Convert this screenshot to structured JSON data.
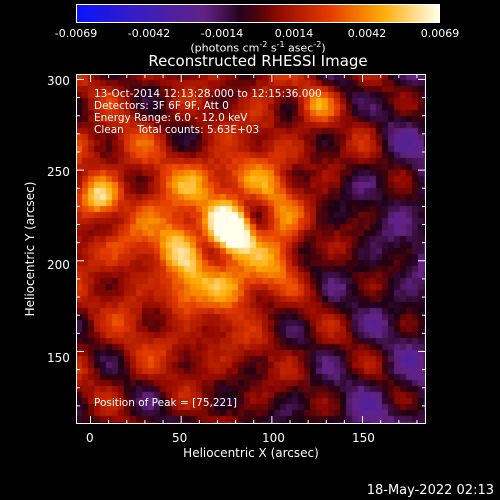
{
  "chart_data": {
    "type": "heatmap",
    "title": "Reconstructed RHESSI Image",
    "xlabel": "Heliocentric X (arcsec)",
    "ylabel": "Heliocentric Y (arcsec)",
    "xlim": [
      -8,
      185
    ],
    "ylim": [
      110,
      303
    ],
    "x_ticks": [
      0,
      50,
      100,
      150
    ],
    "y_ticks": [
      150,
      200,
      250,
      300
    ],
    "colorbar": {
      "range": [
        -0.0069,
        0.0069
      ],
      "ticks": [
        "-0.0069",
        "-0.0042",
        "-0.0014",
        "0.0014",
        "0.0042",
        "0.0069"
      ],
      "label_main": "(photons cm",
      "label_exp1": "-2",
      "label_mid1": " s",
      "label_exp2": "-1",
      "label_mid2": " asec",
      "label_exp3": "-2",
      "label_end": ")"
    },
    "annotations": {
      "line1": "13-Oct-2014 12:13:28.000 to 12:15:36.000",
      "line2": "Detectors: 3F 6F 9F, Att 0",
      "line3": "Energy Range: 6.0 - 12.0 keV",
      "line4": "Clean    Total counts: 5.63E+03",
      "peak": "Position of Peak = [75,221]"
    },
    "peaks": [
      {
        "x": 75,
        "y": 221,
        "amplitude": 1.0
      },
      {
        "x": 80,
        "y": 212,
        "amplitude": 0.85
      },
      {
        "x": 5,
        "y": 235,
        "amplitude": 0.75
      },
      {
        "x": 125,
        "y": 286,
        "amplitude": 0.55
      },
      {
        "x": 50,
        "y": 180,
        "amplitude": 0.45
      }
    ]
  },
  "footer": {
    "timestamp": "18-May-2022 02:13"
  }
}
